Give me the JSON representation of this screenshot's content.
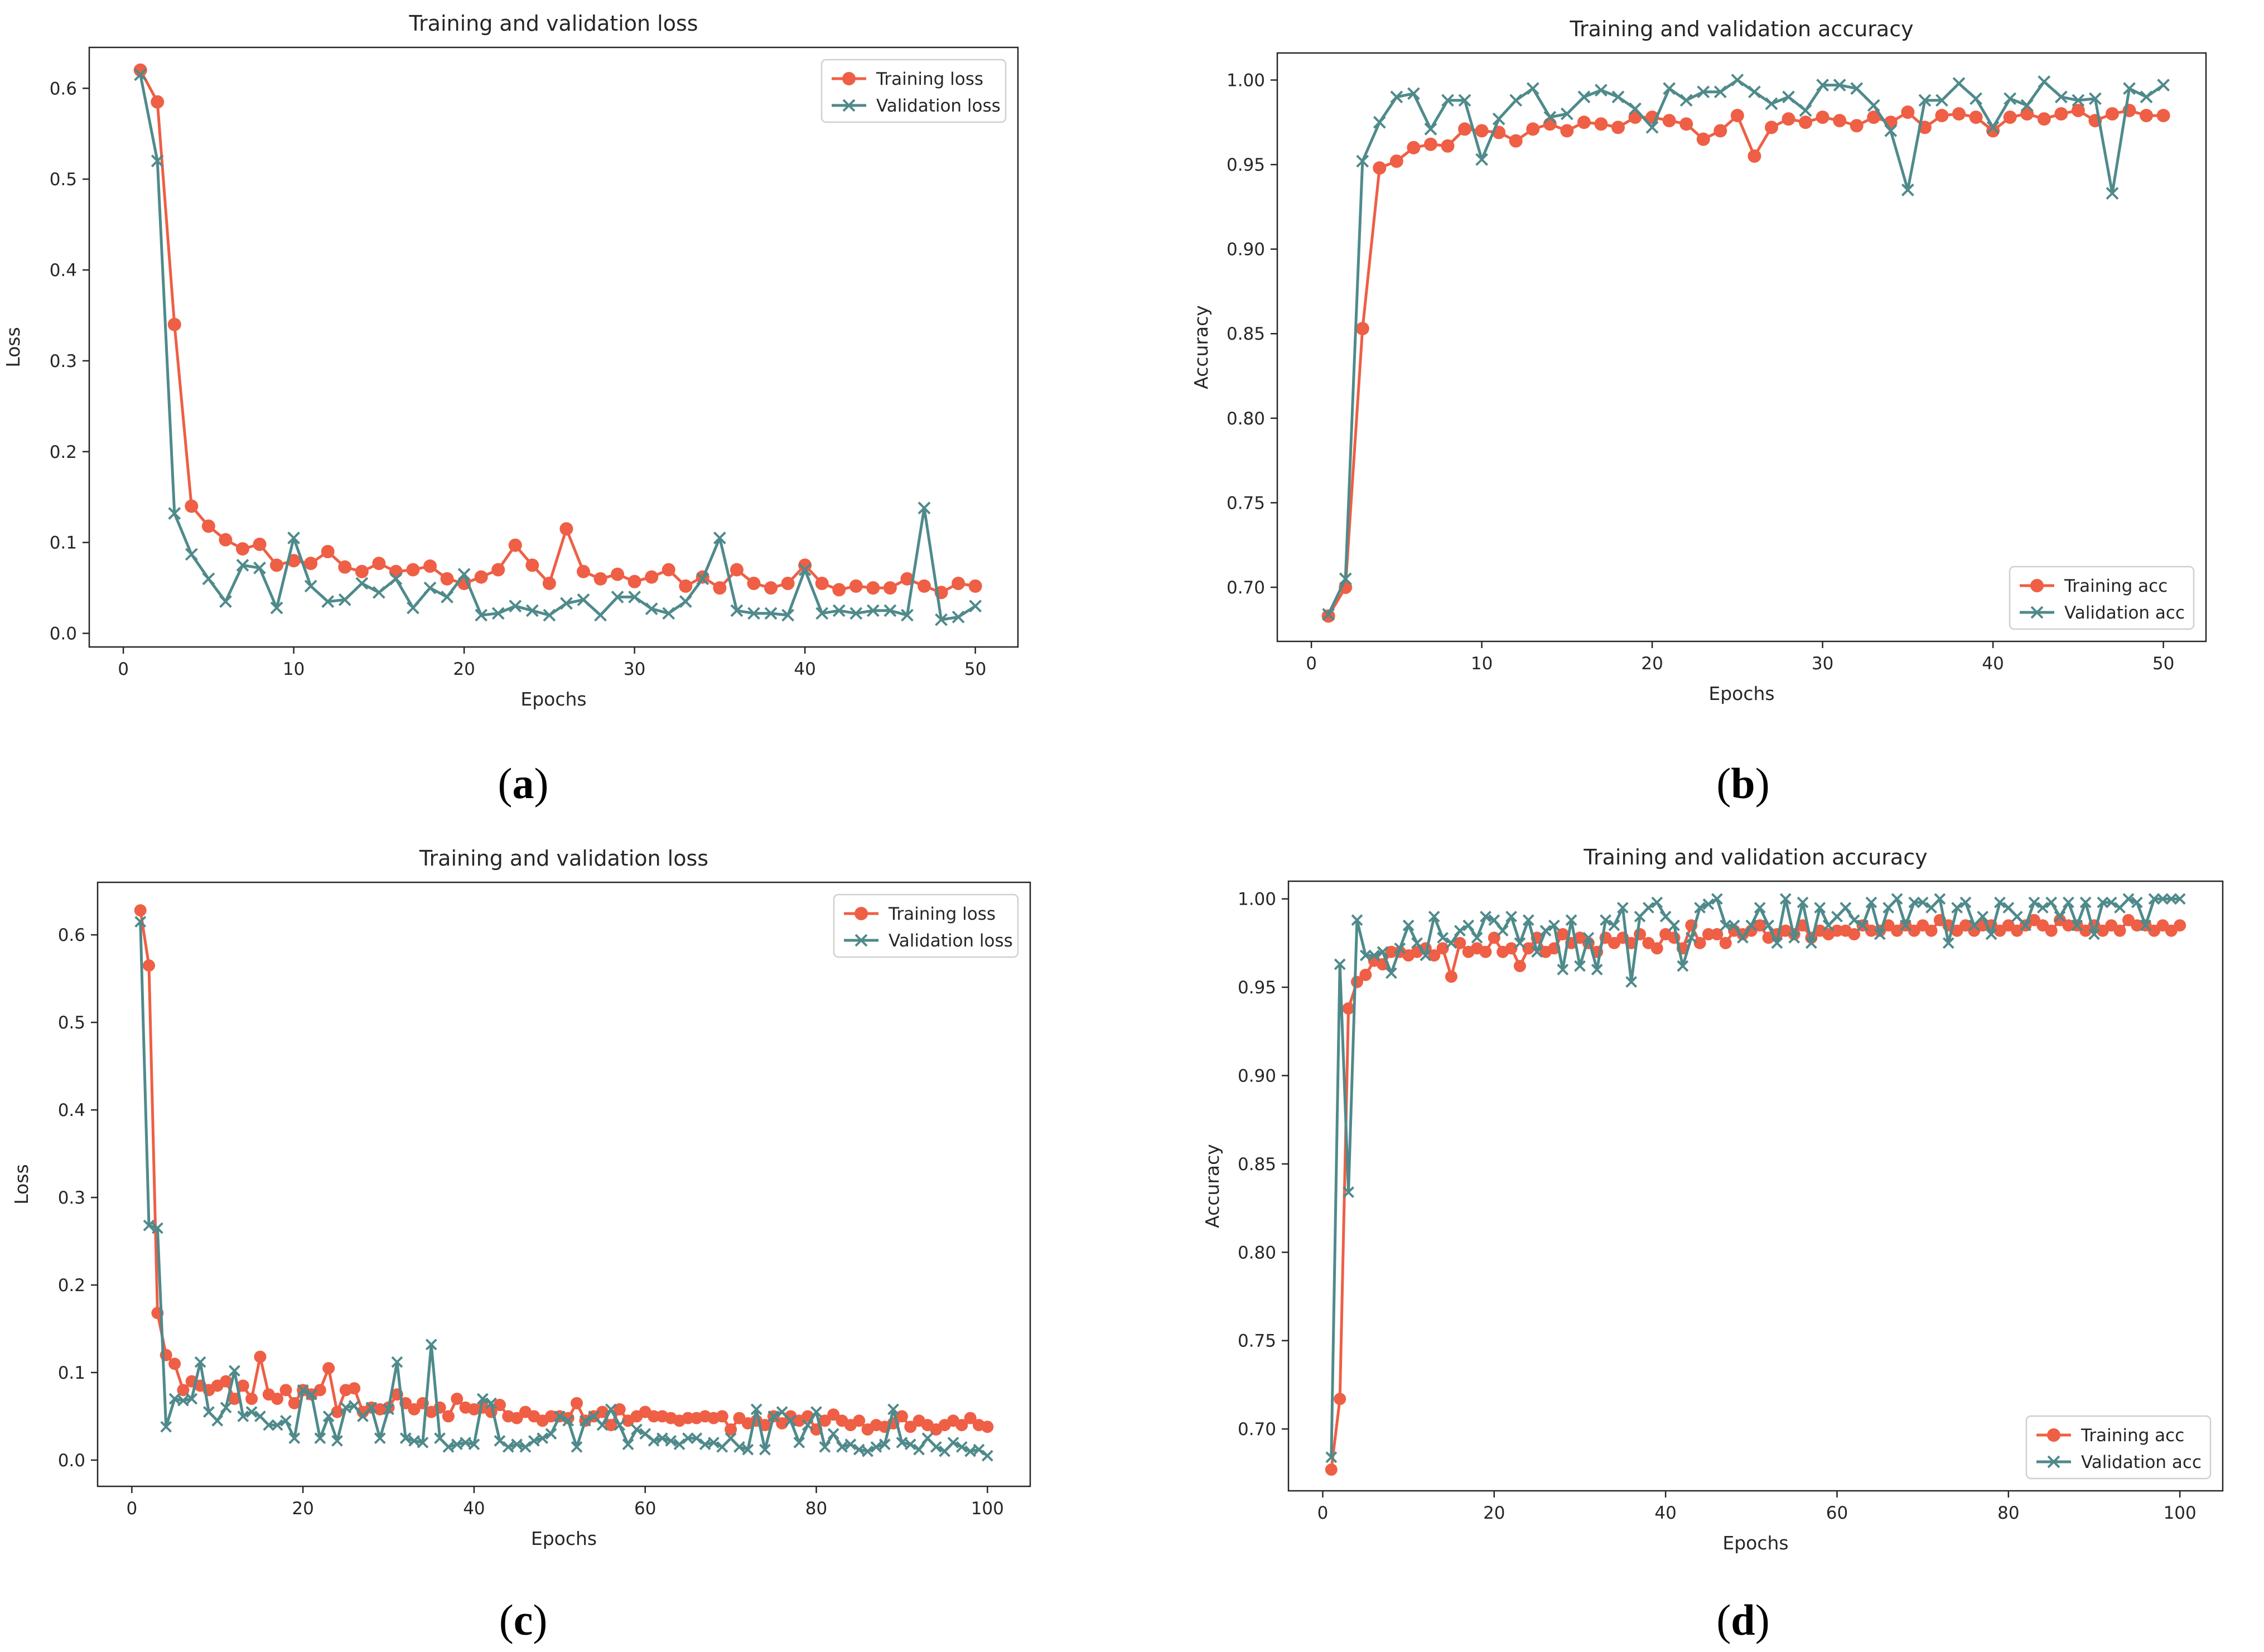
{
  "colors": {
    "training": "#ee5f45",
    "validation": "#4f8a8b",
    "axis": "#262626"
  },
  "charts": [
    {
      "caption_prefix": "(",
      "caption_letter": "a",
      "caption_suffix": ")"
    },
    {
      "caption_prefix": "(",
      "caption_letter": "b",
      "caption_suffix": ")"
    },
    {
      "caption_prefix": "(",
      "caption_letter": "c",
      "caption_suffix": ")"
    },
    {
      "caption_prefix": "(",
      "caption_letter": "d",
      "caption_suffix": ")"
    }
  ],
  "chart_data": [
    {
      "type": "line",
      "title": "Training and validation loss",
      "xlabel": "Epochs",
      "ylabel": "Loss",
      "xlim": [
        -2,
        52.5
      ],
      "ylim": [
        -0.015,
        0.645
      ],
      "xticks": [
        0,
        10,
        20,
        30,
        40,
        50
      ],
      "xtick_labels": [
        "0",
        "10",
        "20",
        "30",
        "40",
        "50"
      ],
      "yticks": [
        0.0,
        0.1,
        0.2,
        0.3,
        0.4,
        0.5,
        0.6
      ],
      "ytick_labels": [
        "0.0",
        "0.1",
        "0.2",
        "0.3",
        "0.4",
        "0.5",
        "0.6"
      ],
      "legend_position": "top-right",
      "series": [
        {
          "name": "Training loss",
          "marker": "circle",
          "color_key": "training",
          "x_start": 1,
          "values": [
            0.62,
            0.585,
            0.34,
            0.14,
            0.118,
            0.103,
            0.093,
            0.098,
            0.075,
            0.08,
            0.077,
            0.09,
            0.073,
            0.068,
            0.077,
            0.068,
            0.07,
            0.074,
            0.06,
            0.055,
            0.062,
            0.07,
            0.097,
            0.075,
            0.055,
            0.115,
            0.068,
            0.06,
            0.065,
            0.057,
            0.062,
            0.07,
            0.052,
            0.062,
            0.05,
            0.07,
            0.055,
            0.05,
            0.055,
            0.075,
            0.055,
            0.048,
            0.052,
            0.05,
            0.05,
            0.06,
            0.052,
            0.045,
            0.055,
            0.052
          ]
        },
        {
          "name": "Validation loss",
          "marker": "x",
          "color_key": "validation",
          "x_start": 1,
          "values": [
            0.615,
            0.52,
            0.132,
            0.087,
            0.06,
            0.035,
            0.075,
            0.072,
            0.028,
            0.105,
            0.052,
            0.035,
            0.037,
            0.055,
            0.045,
            0.06,
            0.028,
            0.05,
            0.04,
            0.065,
            0.02,
            0.022,
            0.03,
            0.025,
            0.02,
            0.033,
            0.037,
            0.02,
            0.04,
            0.04,
            0.027,
            0.022,
            0.035,
            0.06,
            0.105,
            0.025,
            0.022,
            0.022,
            0.02,
            0.07,
            0.022,
            0.025,
            0.022,
            0.025,
            0.025,
            0.02,
            0.138,
            0.015,
            0.018,
            0.03
          ]
        }
      ]
    },
    {
      "type": "line",
      "title": "Training and validation accuracy",
      "xlabel": "Epochs",
      "ylabel": "Accuracy",
      "xlim": [
        -2,
        52.5
      ],
      "ylim": [
        0.668,
        1.016
      ],
      "xticks": [
        0,
        10,
        20,
        30,
        40,
        50
      ],
      "xtick_labels": [
        "0",
        "10",
        "20",
        "30",
        "40",
        "50"
      ],
      "yticks": [
        0.7,
        0.75,
        0.8,
        0.85,
        0.9,
        0.95,
        1.0
      ],
      "ytick_labels": [
        "0.70",
        "0.75",
        "0.80",
        "0.85",
        "0.90",
        "0.95",
        "1.00"
      ],
      "legend_position": "bottom-right",
      "series": [
        {
          "name": "Training acc",
          "marker": "circle",
          "color_key": "training",
          "x_start": 1,
          "values": [
            0.683,
            0.7,
            0.853,
            0.948,
            0.952,
            0.96,
            0.962,
            0.961,
            0.971,
            0.97,
            0.969,
            0.964,
            0.971,
            0.974,
            0.97,
            0.975,
            0.974,
            0.972,
            0.978,
            0.978,
            0.976,
            0.974,
            0.965,
            0.97,
            0.979,
            0.955,
            0.972,
            0.977,
            0.975,
            0.978,
            0.976,
            0.973,
            0.978,
            0.975,
            0.981,
            0.972,
            0.979,
            0.98,
            0.978,
            0.97,
            0.978,
            0.98,
            0.977,
            0.98,
            0.982,
            0.976,
            0.98,
            0.982,
            0.979,
            0.979
          ]
        },
        {
          "name": "Validation acc",
          "marker": "x",
          "color_key": "validation",
          "x_start": 1,
          "values": [
            0.684,
            0.705,
            0.952,
            0.975,
            0.99,
            0.992,
            0.971,
            0.988,
            0.988,
            0.953,
            0.977,
            0.988,
            0.995,
            0.978,
            0.98,
            0.99,
            0.994,
            0.99,
            0.983,
            0.972,
            0.995,
            0.988,
            0.993,
            0.993,
            1.0,
            0.993,
            0.986,
            0.99,
            0.982,
            0.997,
            0.997,
            0.995,
            0.985,
            0.97,
            0.935,
            0.988,
            0.988,
            0.998,
            0.989,
            0.972,
            0.989,
            0.985,
            0.999,
            0.99,
            0.988,
            0.989,
            0.933,
            0.995,
            0.99,
            0.997
          ]
        }
      ]
    },
    {
      "type": "line",
      "title": "Training and validation loss",
      "xlabel": "Epochs",
      "ylabel": "Loss",
      "xlim": [
        -4,
        105
      ],
      "ylim": [
        -0.03,
        0.66
      ],
      "xticks": [
        0,
        20,
        40,
        60,
        80,
        100
      ],
      "xtick_labels": [
        "0",
        "20",
        "40",
        "60",
        "80",
        "100"
      ],
      "yticks": [
        0.0,
        0.1,
        0.2,
        0.3,
        0.4,
        0.5,
        0.6
      ],
      "ytick_labels": [
        "0.0",
        "0.1",
        "0.2",
        "0.3",
        "0.4",
        "0.5",
        "0.6"
      ],
      "legend_position": "top-right",
      "series": [
        {
          "name": "Training loss",
          "marker": "circle",
          "color_key": "training",
          "x_start": 1,
          "values": [
            0.628,
            0.565,
            0.168,
            0.12,
            0.11,
            0.08,
            0.09,
            0.085,
            0.08,
            0.085,
            0.09,
            0.07,
            0.085,
            0.07,
            0.118,
            0.075,
            0.07,
            0.08,
            0.065,
            0.08,
            0.075,
            0.08,
            0.105,
            0.055,
            0.08,
            0.082,
            0.055,
            0.06,
            0.058,
            0.06,
            0.075,
            0.065,
            0.058,
            0.065,
            0.055,
            0.06,
            0.05,
            0.07,
            0.06,
            0.058,
            0.06,
            0.055,
            0.063,
            0.05,
            0.048,
            0.055,
            0.05,
            0.045,
            0.05,
            0.05,
            0.048,
            0.065,
            0.045,
            0.05,
            0.055,
            0.04,
            0.058,
            0.045,
            0.05,
            0.055,
            0.05,
            0.05,
            0.048,
            0.045,
            0.048,
            0.048,
            0.05,
            0.048,
            0.05,
            0.035,
            0.048,
            0.042,
            0.045,
            0.04,
            0.05,
            0.042,
            0.05,
            0.045,
            0.05,
            0.035,
            0.045,
            0.052,
            0.045,
            0.04,
            0.045,
            0.035,
            0.04,
            0.038,
            0.042,
            0.05,
            0.038,
            0.045,
            0.04,
            0.035,
            0.04,
            0.045,
            0.04,
            0.048,
            0.04,
            0.038
          ]
        },
        {
          "name": "Validation loss",
          "marker": "x",
          "color_key": "validation",
          "x_start": 1,
          "values": [
            0.615,
            0.268,
            0.265,
            0.038,
            0.07,
            0.068,
            0.07,
            0.112,
            0.055,
            0.045,
            0.06,
            0.102,
            0.05,
            0.055,
            0.05,
            0.04,
            0.04,
            0.045,
            0.025,
            0.08,
            0.075,
            0.025,
            0.05,
            0.022,
            0.06,
            0.062,
            0.05,
            0.06,
            0.025,
            0.058,
            0.112,
            0.025,
            0.022,
            0.02,
            0.132,
            0.025,
            0.015,
            0.018,
            0.02,
            0.018,
            0.07,
            0.065,
            0.022,
            0.015,
            0.018,
            0.015,
            0.022,
            0.025,
            0.03,
            0.05,
            0.045,
            0.015,
            0.045,
            0.05,
            0.04,
            0.058,
            0.04,
            0.018,
            0.035,
            0.03,
            0.022,
            0.025,
            0.022,
            0.018,
            0.025,
            0.025,
            0.018,
            0.02,
            0.015,
            0.025,
            0.015,
            0.012,
            0.058,
            0.012,
            0.05,
            0.055,
            0.045,
            0.02,
            0.04,
            0.055,
            0.015,
            0.03,
            0.015,
            0.018,
            0.012,
            0.01,
            0.015,
            0.018,
            0.058,
            0.02,
            0.018,
            0.012,
            0.025,
            0.015,
            0.01,
            0.02,
            0.015,
            0.01,
            0.012,
            0.005
          ]
        }
      ]
    },
    {
      "type": "line",
      "title": "Training and validation accuracy",
      "xlabel": "Epochs",
      "ylabel": "Accuracy",
      "xlim": [
        -4,
        105
      ],
      "ylim": [
        0.665,
        1.01
      ],
      "xticks": [
        0,
        20,
        40,
        60,
        80,
        100
      ],
      "xtick_labels": [
        "0",
        "20",
        "40",
        "60",
        "80",
        "100"
      ],
      "yticks": [
        0.7,
        0.75,
        0.8,
        0.85,
        0.9,
        0.95,
        1.0
      ],
      "ytick_labels": [
        "0.70",
        "0.75",
        "0.80",
        "0.85",
        "0.90",
        "0.95",
        "1.00"
      ],
      "legend_position": "bottom-right",
      "series": [
        {
          "name": "Training acc",
          "marker": "circle",
          "color_key": "training",
          "x_start": 1,
          "values": [
            0.677,
            0.717,
            0.938,
            0.953,
            0.957,
            0.965,
            0.963,
            0.97,
            0.97,
            0.968,
            0.97,
            0.972,
            0.968,
            0.972,
            0.956,
            0.975,
            0.97,
            0.972,
            0.97,
            0.978,
            0.97,
            0.972,
            0.962,
            0.972,
            0.978,
            0.97,
            0.972,
            0.98,
            0.975,
            0.978,
            0.975,
            0.97,
            0.978,
            0.975,
            0.978,
            0.975,
            0.98,
            0.975,
            0.972,
            0.98,
            0.978,
            0.972,
            0.985,
            0.975,
            0.98,
            0.98,
            0.975,
            0.982,
            0.98,
            0.982,
            0.985,
            0.978,
            0.98,
            0.982,
            0.98,
            0.985,
            0.978,
            0.982,
            0.98,
            0.982,
            0.982,
            0.98,
            0.985,
            0.982,
            0.982,
            0.985,
            0.982,
            0.985,
            0.982,
            0.985,
            0.982,
            0.988,
            0.985,
            0.982,
            0.985,
            0.982,
            0.985,
            0.985,
            0.982,
            0.985,
            0.982,
            0.985,
            0.988,
            0.985,
            0.982,
            0.988,
            0.985,
            0.985,
            0.982,
            0.985,
            0.982,
            0.985,
            0.982,
            0.988,
            0.985,
            0.985,
            0.982,
            0.985,
            0.982,
            0.985
          ]
        },
        {
          "name": "Validation acc",
          "marker": "x",
          "color_key": "validation",
          "x_start": 1,
          "values": [
            0.684,
            0.963,
            0.834,
            0.988,
            0.968,
            0.968,
            0.97,
            0.958,
            0.972,
            0.985,
            0.975,
            0.968,
            0.99,
            0.978,
            0.975,
            0.982,
            0.985,
            0.978,
            0.99,
            0.988,
            0.982,
            0.99,
            0.975,
            0.988,
            0.97,
            0.982,
            0.985,
            0.96,
            0.988,
            0.962,
            0.978,
            0.96,
            0.988,
            0.985,
            0.995,
            0.953,
            0.99,
            0.995,
            0.998,
            0.99,
            0.985,
            0.962,
            0.978,
            0.995,
            0.997,
            1.0,
            0.985,
            0.985,
            0.978,
            0.985,
            0.995,
            0.985,
            0.975,
            1.0,
            0.978,
            0.998,
            0.975,
            0.995,
            0.985,
            0.99,
            0.995,
            0.988,
            0.985,
            0.998,
            0.98,
            0.995,
            1.0,
            0.985,
            0.998,
            0.998,
            0.995,
            1.0,
            0.975,
            0.995,
            0.998,
            0.985,
            0.99,
            0.98,
            0.998,
            0.995,
            0.99,
            0.985,
            0.998,
            0.995,
            0.998,
            0.99,
            0.998,
            0.985,
            0.998,
            0.98,
            0.998,
            0.998,
            0.995,
            1.0,
            0.998,
            0.985,
            1.0,
            1.0,
            1.0,
            1.0
          ]
        }
      ]
    }
  ]
}
